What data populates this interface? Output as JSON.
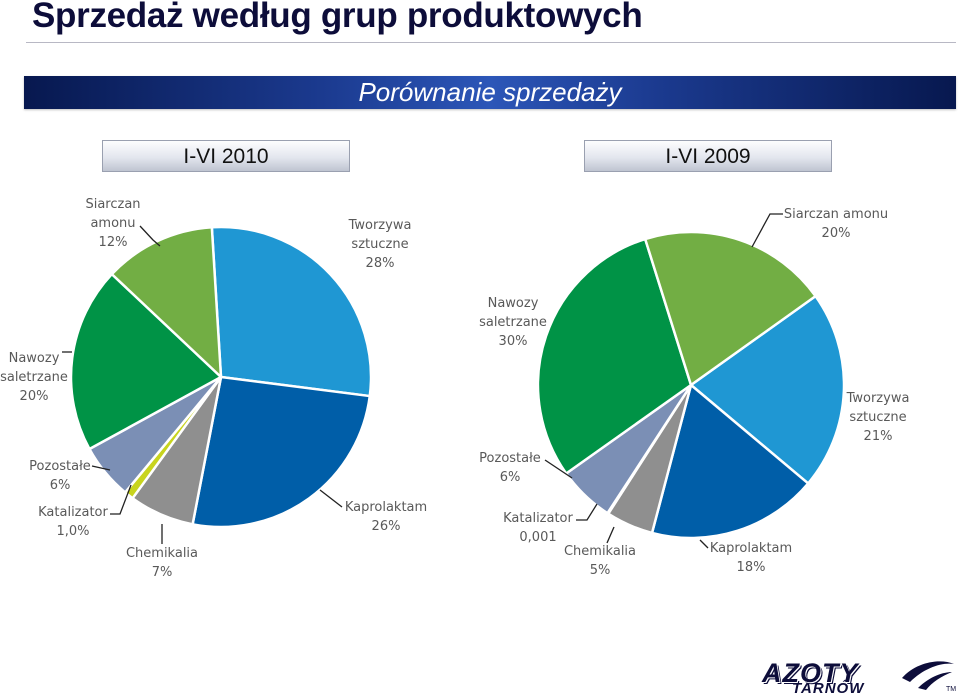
{
  "page_title": "Sprzedaż według grup produktowych",
  "banner_title": "Porównanie sprzedaży",
  "logo": {
    "text": "AZOTY",
    "subtext": "TARNÓW",
    "tm": "TM"
  },
  "colors": {
    "page_title": "#0d0d3a",
    "banner": "#1b3a8f",
    "label_text": "#595959",
    "slice_border": "#ffffff"
  },
  "chart_data": [
    {
      "type": "pie",
      "title": "I-VI 2010",
      "start_angle_deg": -3.5,
      "slices": [
        {
          "name": "Tworzywa sztuczne",
          "value": 28,
          "label": "28%",
          "color": "#1f97d3"
        },
        {
          "name": "Kaprolaktam",
          "value": 26,
          "label": "26%",
          "color": "#005ea8"
        },
        {
          "name": "Chemikalia",
          "value": 7,
          "label": "7%",
          "color": "#8f8f8f"
        },
        {
          "name": "Katalizator",
          "value": 1.0,
          "label": "1,0%",
          "color": "#c8d41e"
        },
        {
          "name": "Pozostałe",
          "value": 6,
          "label": "6%",
          "color": "#7b8fb5"
        },
        {
          "name": "Nawozy saletrzane",
          "value": 20,
          "label": "20%",
          "color": "#009346"
        },
        {
          "name": "Siarczan amonu",
          "value": 12,
          "label": "12%",
          "color": "#72ae44"
        }
      ]
    },
    {
      "type": "pie",
      "title": "I-VI 2009",
      "start_angle_deg": 54.5,
      "slices": [
        {
          "name": "Tworzywa sztuczne",
          "value": 21,
          "label": "21%",
          "color": "#1f97d3"
        },
        {
          "name": "Kaprolaktam",
          "value": 18,
          "label": "18%",
          "color": "#005ea8"
        },
        {
          "name": "Chemikalia",
          "value": 5,
          "label": "5%",
          "color": "#8f8f8f"
        },
        {
          "name": "Katalizator",
          "value": 0.1,
          "label": "0,001",
          "color": "#c8d41e"
        },
        {
          "name": "Pozostałe",
          "value": 6,
          "label": "6%",
          "color": "#7b8fb5"
        },
        {
          "name": "Nawozy saletrzane",
          "value": 30,
          "label": "30%",
          "color": "#009346"
        },
        {
          "name": "Siarczan amonu",
          "value": 20,
          "label": "20%",
          "color": "#72ae44"
        }
      ]
    }
  ]
}
